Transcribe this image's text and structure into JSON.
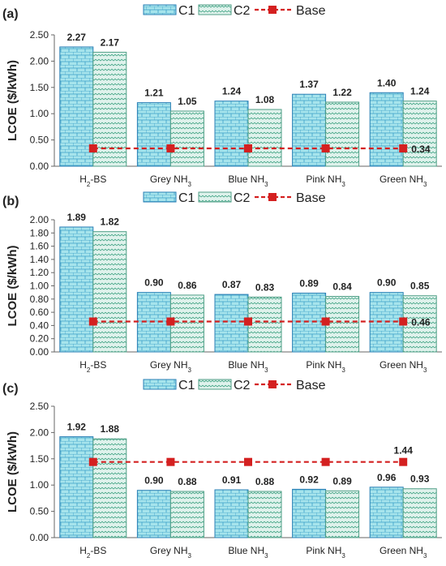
{
  "chart_data": [
    {
      "type": "bar",
      "panel_label": "(a)",
      "categories": [
        "H2-BS",
        "Grey NH3",
        "Blue NH3",
        "Pink NH3",
        "Green NH3"
      ],
      "category_labels": [
        {
          "text": "H",
          "sub": "2",
          "after": "-BS"
        },
        {
          "text": "Grey  NH",
          "sub": "3",
          "after": ""
        },
        {
          "text": "Blue  NH",
          "sub": "3",
          "after": ""
        },
        {
          "text": "Pink  NH",
          "sub": "3",
          "after": ""
        },
        {
          "text": "Green  NH",
          "sub": "3",
          "after": ""
        }
      ],
      "series": [
        {
          "name": "C1",
          "values": [
            2.27,
            1.21,
            1.24,
            1.37,
            1.4
          ],
          "labels": [
            "2.27",
            "1.21",
            "1.24",
            "1.37",
            "1.40"
          ]
        },
        {
          "name": "C2",
          "values": [
            2.17,
            1.05,
            1.08,
            1.22,
            1.24
          ],
          "labels": [
            "2.17",
            "1.05",
            "1.08",
            "1.22",
            "1.24"
          ]
        }
      ],
      "base": {
        "name": "Base",
        "value": 0.34,
        "label": "0.34"
      },
      "ylabel": "LCOE ($/kWh)",
      "ylim": [
        0,
        2.5
      ],
      "yticks": [
        "0.00",
        "0.50",
        "1.00",
        "1.50",
        "2.00",
        "2.50"
      ],
      "ytick_values": [
        0,
        0.5,
        1.0,
        1.5,
        2.0,
        2.5
      ],
      "grid": false,
      "legend": "top-center"
    },
    {
      "type": "bar",
      "panel_label": "(b)",
      "categories": [
        "H2-BS",
        "Grey NH3",
        "Blue NH3",
        "Pink NH3",
        "Green NH3"
      ],
      "category_labels": [
        {
          "text": "H",
          "sub": "2",
          "after": "-BS"
        },
        {
          "text": "Grey  NH",
          "sub": "3",
          "after": ""
        },
        {
          "text": "Blue  NH",
          "sub": "3",
          "after": ""
        },
        {
          "text": "Pink  NH",
          "sub": "3",
          "after": ""
        },
        {
          "text": "Green  NH",
          "sub": "3",
          "after": ""
        }
      ],
      "series": [
        {
          "name": "C1",
          "values": [
            1.89,
            0.9,
            0.87,
            0.89,
            0.9
          ],
          "labels": [
            "1.89",
            "0.90",
            "0.87",
            "0.89",
            "0.90"
          ]
        },
        {
          "name": "C2",
          "values": [
            1.82,
            0.86,
            0.83,
            0.84,
            0.85
          ],
          "labels": [
            "1.82",
            "0.86",
            "0.83",
            "0.84",
            "0.85"
          ]
        }
      ],
      "base": {
        "name": "Base",
        "value": 0.46,
        "label": "0.46"
      },
      "ylabel": "LCOE ($/kWh)",
      "ylim": [
        0,
        2.0
      ],
      "yticks": [
        "0.00",
        "0.20",
        "0.40",
        "0.60",
        "0.80",
        "1.00",
        "1.20",
        "1.40",
        "1.60",
        "1.80",
        "2.00"
      ],
      "ytick_values": [
        0,
        0.2,
        0.4,
        0.6,
        0.8,
        1.0,
        1.2,
        1.4,
        1.6,
        1.8,
        2.0
      ],
      "grid": false,
      "legend": "top-center"
    },
    {
      "type": "bar",
      "panel_label": "(c)",
      "categories": [
        "H2-BS",
        "Grey NH3",
        "Blue NH3",
        "Pink NH3",
        "Green NH3"
      ],
      "category_labels": [
        {
          "text": "H",
          "sub": "2",
          "after": "-BS"
        },
        {
          "text": "Grey  NH",
          "sub": "3",
          "after": ""
        },
        {
          "text": "Blue  NH",
          "sub": "3",
          "after": ""
        },
        {
          "text": "Pink  NH",
          "sub": "3",
          "after": ""
        },
        {
          "text": "Green  NH",
          "sub": "3",
          "after": ""
        }
      ],
      "series": [
        {
          "name": "C1",
          "values": [
            1.92,
            0.9,
            0.91,
            0.92,
            0.96
          ],
          "labels": [
            "1.92",
            "0.90",
            "0.91",
            "0.92",
            "0.96"
          ]
        },
        {
          "name": "C2",
          "values": [
            1.88,
            0.88,
            0.88,
            0.89,
            0.93
          ],
          "labels": [
            "1.88",
            "0.88",
            "0.88",
            "0.89",
            "0.93"
          ]
        }
      ],
      "base": {
        "name": "Base",
        "value": 1.44,
        "label": "1.44"
      },
      "ylabel": "LCOE ($/kWh)",
      "ylim": [
        0,
        2.5
      ],
      "yticks": [
        "0.00",
        "0.50",
        "1.00",
        "1.50",
        "2.00",
        "2.50"
      ],
      "ytick_values": [
        0,
        0.5,
        1.0,
        1.5,
        2.0,
        2.5
      ],
      "grid": false,
      "legend": "top-center"
    }
  ],
  "colors": {
    "bar_fill": "#a6e4ec",
    "brick_line": "#3aa0c8",
    "c1_border": "#2a7fb5",
    "c2_fill": "#dff2ec",
    "wave_line": "#3aa080",
    "c2_border": "#4f9e86",
    "base": "#d42020",
    "axis": "#666666",
    "text": "#222222"
  }
}
